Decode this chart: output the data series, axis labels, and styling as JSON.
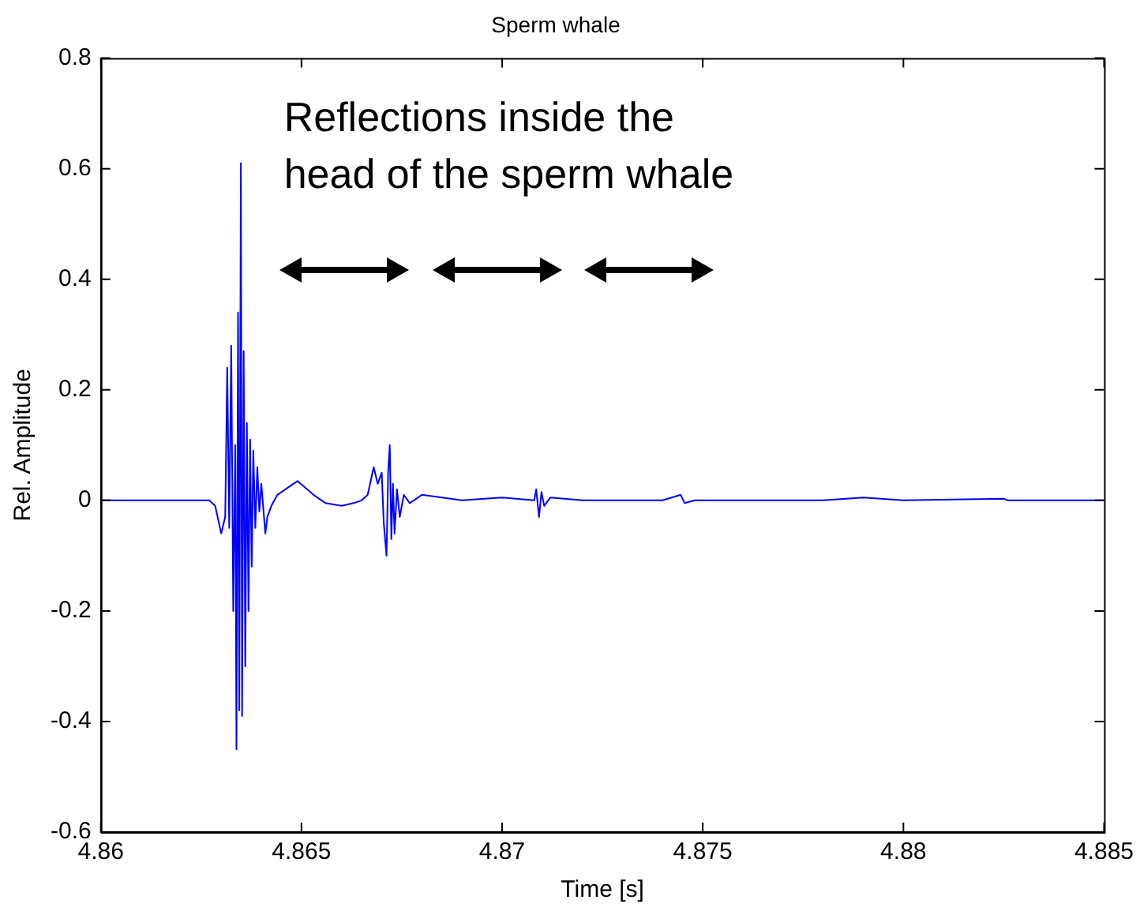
{
  "chart_data": {
    "type": "line",
    "title": "Sperm whale",
    "xlabel": "Time [s]",
    "ylabel": "Rel. Amplitude",
    "annotations": [
      "Reflections inside the head of the sperm whale"
    ],
    "series": [
      {
        "color": "#0000ff",
        "x": [
          4.86,
          4.8627,
          4.86285,
          4.863,
          4.8631,
          4.86315,
          4.8632,
          4.86325,
          4.8633,
          4.86335,
          4.86338,
          4.86342,
          4.86345,
          4.86349,
          4.86352,
          4.86356,
          4.8636,
          4.86364,
          4.86368,
          4.86372,
          4.86376,
          4.8638,
          4.86385,
          4.8639,
          4.86395,
          4.864,
          4.8641,
          4.86415,
          4.86425,
          4.8644,
          4.8649,
          4.8653,
          4.8656,
          4.866,
          4.8663,
          4.8665,
          4.86665,
          4.8668,
          4.8669,
          4.867,
          4.86705,
          4.86712,
          4.86716,
          4.8672,
          4.86724,
          4.86728,
          4.86732,
          4.86738,
          4.86745,
          4.86755,
          4.8677,
          4.868,
          4.8685,
          4.869,
          4.87,
          4.8708,
          4.87085,
          4.87092,
          4.87098,
          4.87105,
          4.8712,
          4.872,
          4.874,
          4.87445,
          4.87455,
          4.8748,
          4.878,
          4.879,
          4.88,
          4.8825,
          4.8826,
          4.885
        ],
        "values": [
          0,
          0,
          -0.01,
          -0.06,
          -0.03,
          0.24,
          -0.05,
          0.28,
          -0.2,
          0.1,
          -0.45,
          0.34,
          -0.38,
          0.61,
          -0.39,
          0.27,
          -0.3,
          0.14,
          -0.2,
          0.11,
          -0.12,
          0.09,
          -0.05,
          0.06,
          -0.02,
          0.03,
          -0.06,
          -0.03,
          -0.01,
          0.01,
          0.035,
          0.01,
          -0.005,
          -0.01,
          -0.005,
          0,
          0.01,
          0.06,
          0.03,
          0.05,
          -0.04,
          -0.1,
          0.05,
          0.1,
          -0.07,
          0.03,
          -0.06,
          0.02,
          -0.03,
          0.01,
          -0.005,
          0.01,
          0.005,
          0,
          0.005,
          0,
          0.02,
          -0.03,
          0.015,
          -0.01,
          0.005,
          0,
          0,
          0.01,
          -0.005,
          0,
          0,
          0.005,
          0,
          0.003,
          0,
          0
        ]
      }
    ],
    "xlim": [
      4.86,
      4.885
    ],
    "xticks": [
      4.86,
      4.865,
      4.87,
      4.875,
      4.88,
      4.885
    ],
    "ylim": [
      -0.6,
      0.8
    ],
    "yticks": [
      -0.6,
      -0.4,
      -0.2,
      0,
      0.2,
      0.4,
      0.6,
      0.8
    ],
    "grid": false,
    "legend": false,
    "marker": "none",
    "line_style": "solid"
  }
}
